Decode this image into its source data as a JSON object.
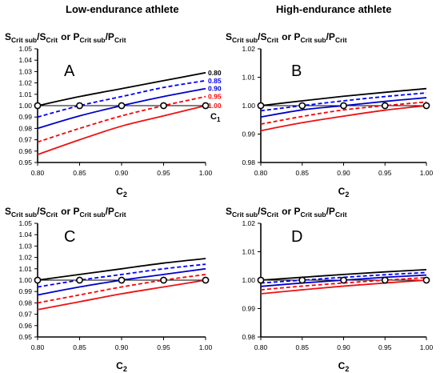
{
  "headers": {
    "left": "Low-endurance athlete",
    "right": "High-endurance athlete"
  },
  "colors": {
    "c1_080": "#000000",
    "c1_085": "#0000ff",
    "c1_090": "#0000cc",
    "c1_095": "#ff0000",
    "c1_100": "#ee1111"
  },
  "chart_data": [
    {
      "type": "line",
      "panel_letter": "A",
      "ylabel_parts": [
        "S",
        "Crit sub",
        "/S",
        "Crit",
        " or P",
        "Crit sub",
        "/P",
        "Crit"
      ],
      "xlabel_main": "C",
      "xlabel_sub": "2",
      "xlim": [
        0.8,
        1.0
      ],
      "ylim": [
        0.95,
        1.05
      ],
      "xticks": [
        "0.80",
        "0.85",
        "0.90",
        "0.95",
        "1.00"
      ],
      "yticks": [
        "0.95",
        "0.96",
        "0.97",
        "0.98",
        "0.99",
        "1.00",
        "1.01",
        "1.02",
        "1.03",
        "1.04",
        "1.05"
      ],
      "x": [
        0.8,
        0.85,
        0.9,
        0.95,
        1.0
      ],
      "series": [
        {
          "name": "0.80",
          "dash": "solid",
          "color": "#000000",
          "values": [
            1.0,
            1.008,
            1.015,
            1.022,
            1.029
          ]
        },
        {
          "name": "0.85",
          "dash": "dashed",
          "color": "#0000ff",
          "values": [
            0.99,
            1.0,
            1.008,
            1.016,
            1.022
          ]
        },
        {
          "name": "0.90",
          "dash": "solid",
          "color": "#0000cc",
          "values": [
            0.98,
            0.991,
            1.0,
            1.008,
            1.015
          ]
        },
        {
          "name": "0.95",
          "dash": "dashed",
          "color": "#ff0000",
          "values": [
            0.968,
            0.98,
            0.991,
            1.0,
            1.008
          ]
        },
        {
          "name": "1.00",
          "dash": "solid",
          "color": "#ee1111",
          "values": [
            0.957,
            0.97,
            0.982,
            0.991,
            1.0
          ]
        }
      ],
      "reference_line": 1.0,
      "markers": [
        [
          0.8,
          1.0
        ],
        [
          0.85,
          1.0
        ],
        [
          0.9,
          1.0
        ],
        [
          0.95,
          1.0
        ],
        [
          1.0,
          1.0
        ]
      ],
      "legend_labels": [
        "0.80",
        "0.85",
        "0.90",
        "0.95",
        "1.00"
      ],
      "legend_title_main": "C",
      "legend_title_sub": "1"
    },
    {
      "type": "line",
      "panel_letter": "B",
      "ylabel_parts": [
        "S",
        "Crit sub",
        "/S",
        "Crit",
        " or P",
        "Crit sub",
        "/P",
        "Crit"
      ],
      "xlabel_main": "C",
      "xlabel_sub": "2",
      "xlim": [
        0.8,
        1.0
      ],
      "ylim": [
        0.98,
        1.02
      ],
      "xticks": [
        "0.80",
        "0.85",
        "0.90",
        "0.95",
        "1.00"
      ],
      "yticks": [
        "0.98",
        "0.99",
        "1.00",
        "1.01",
        "1.02"
      ],
      "x": [
        0.8,
        0.85,
        0.9,
        0.95,
        1.0
      ],
      "series": [
        {
          "dash": "solid",
          "color": "#000000",
          "values": [
            1.0,
            1.0017,
            1.0033,
            1.0047,
            1.006
          ]
        },
        {
          "dash": "dashed",
          "color": "#0000ff",
          "values": [
            0.9982,
            1.0,
            1.0017,
            1.0032,
            1.0045
          ]
        },
        {
          "dash": "solid",
          "color": "#0000cc",
          "values": [
            0.996,
            0.9985,
            1.0,
            1.0015,
            1.0028
          ]
        },
        {
          "dash": "dashed",
          "color": "#ff0000",
          "values": [
            0.9935,
            0.9962,
            0.9985,
            1.0,
            1.0013
          ]
        },
        {
          "dash": "solid",
          "color": "#ee1111",
          "values": [
            0.9912,
            0.994,
            0.9963,
            0.9984,
            1.0
          ]
        }
      ],
      "reference_line": 1.0,
      "markers": [
        [
          0.8,
          1.0
        ],
        [
          0.85,
          1.0
        ],
        [
          0.9,
          1.0
        ],
        [
          0.95,
          1.0
        ],
        [
          1.0,
          1.0
        ]
      ]
    },
    {
      "type": "line",
      "panel_letter": "C",
      "ylabel_parts": [
        "S",
        "Crit sub",
        "/S",
        "Crit",
        " or P",
        "Crit sub",
        "/P",
        "Crit"
      ],
      "xlabel_main": "C",
      "xlabel_sub": "2",
      "xlim": [
        0.8,
        1.0
      ],
      "ylim": [
        0.95,
        1.05
      ],
      "xticks": [
        "0.80",
        "0.85",
        "0.90",
        "0.95",
        "1.00"
      ],
      "yticks": [
        "0.95",
        "0.96",
        "0.97",
        "0.98",
        "0.99",
        "1.00",
        "1.01",
        "1.02",
        "1.03",
        "1.04",
        "1.05"
      ],
      "x": [
        0.8,
        0.85,
        0.9,
        0.95,
        1.0
      ],
      "series": [
        {
          "dash": "solid",
          "color": "#000000",
          "values": [
            1.0,
            1.005,
            1.01,
            1.015,
            1.019
          ]
        },
        {
          "dash": "dashed",
          "color": "#0000ff",
          "values": [
            0.994,
            1.0,
            1.005,
            1.01,
            1.014
          ]
        },
        {
          "dash": "solid",
          "color": "#0000cc",
          "values": [
            0.987,
            0.994,
            1.0,
            1.005,
            1.01
          ]
        },
        {
          "dash": "dashed",
          "color": "#ff0000",
          "values": [
            0.98,
            0.987,
            0.994,
            1.0,
            1.005
          ]
        },
        {
          "dash": "solid",
          "color": "#ee1111",
          "values": [
            0.974,
            0.981,
            0.988,
            0.994,
            1.0
          ]
        }
      ],
      "reference_line": 1.0,
      "markers": [
        [
          0.8,
          1.0
        ],
        [
          0.85,
          1.0
        ],
        [
          0.9,
          1.0
        ],
        [
          0.95,
          1.0
        ],
        [
          1.0,
          1.0
        ]
      ]
    },
    {
      "type": "line",
      "panel_letter": "D",
      "ylabel_parts": [
        "S",
        "Crit sub",
        "/S",
        "Crit",
        " or P",
        "Crit sub",
        "/P",
        "Crit"
      ],
      "xlabel_main": "C",
      "xlabel_sub": "2",
      "xlim": [
        0.8,
        1.0
      ],
      "ylim": [
        0.98,
        1.02
      ],
      "xticks": [
        "0.80",
        "0.85",
        "0.90",
        "0.95",
        "1.00"
      ],
      "yticks": [
        "0.98",
        "0.99",
        "1.00",
        "1.01",
        "1.02"
      ],
      "x": [
        0.8,
        0.85,
        0.9,
        0.95,
        1.0
      ],
      "series": [
        {
          "dash": "solid",
          "color": "#000000",
          "values": [
            1.0,
            1.001,
            1.002,
            1.0029,
            1.0037
          ]
        },
        {
          "dash": "dashed",
          "color": "#0000ff",
          "values": [
            0.999,
            1.0,
            1.001,
            1.0019,
            1.0027
          ]
        },
        {
          "dash": "solid",
          "color": "#0000cc",
          "values": [
            0.9978,
            0.999,
            1.0,
            1.001,
            1.0018
          ]
        },
        {
          "dash": "dashed",
          "color": "#ff0000",
          "values": [
            0.9966,
            0.9979,
            0.999,
            1.0,
            1.0009
          ]
        },
        {
          "dash": "solid",
          "color": "#ee1111",
          "values": [
            0.9952,
            0.9966,
            0.9979,
            0.999,
            1.0
          ]
        }
      ],
      "reference_line": 1.0,
      "markers": [
        [
          0.8,
          1.0
        ],
        [
          0.85,
          1.0
        ],
        [
          0.9,
          1.0
        ],
        [
          0.95,
          1.0
        ],
        [
          1.0,
          1.0
        ]
      ]
    }
  ]
}
